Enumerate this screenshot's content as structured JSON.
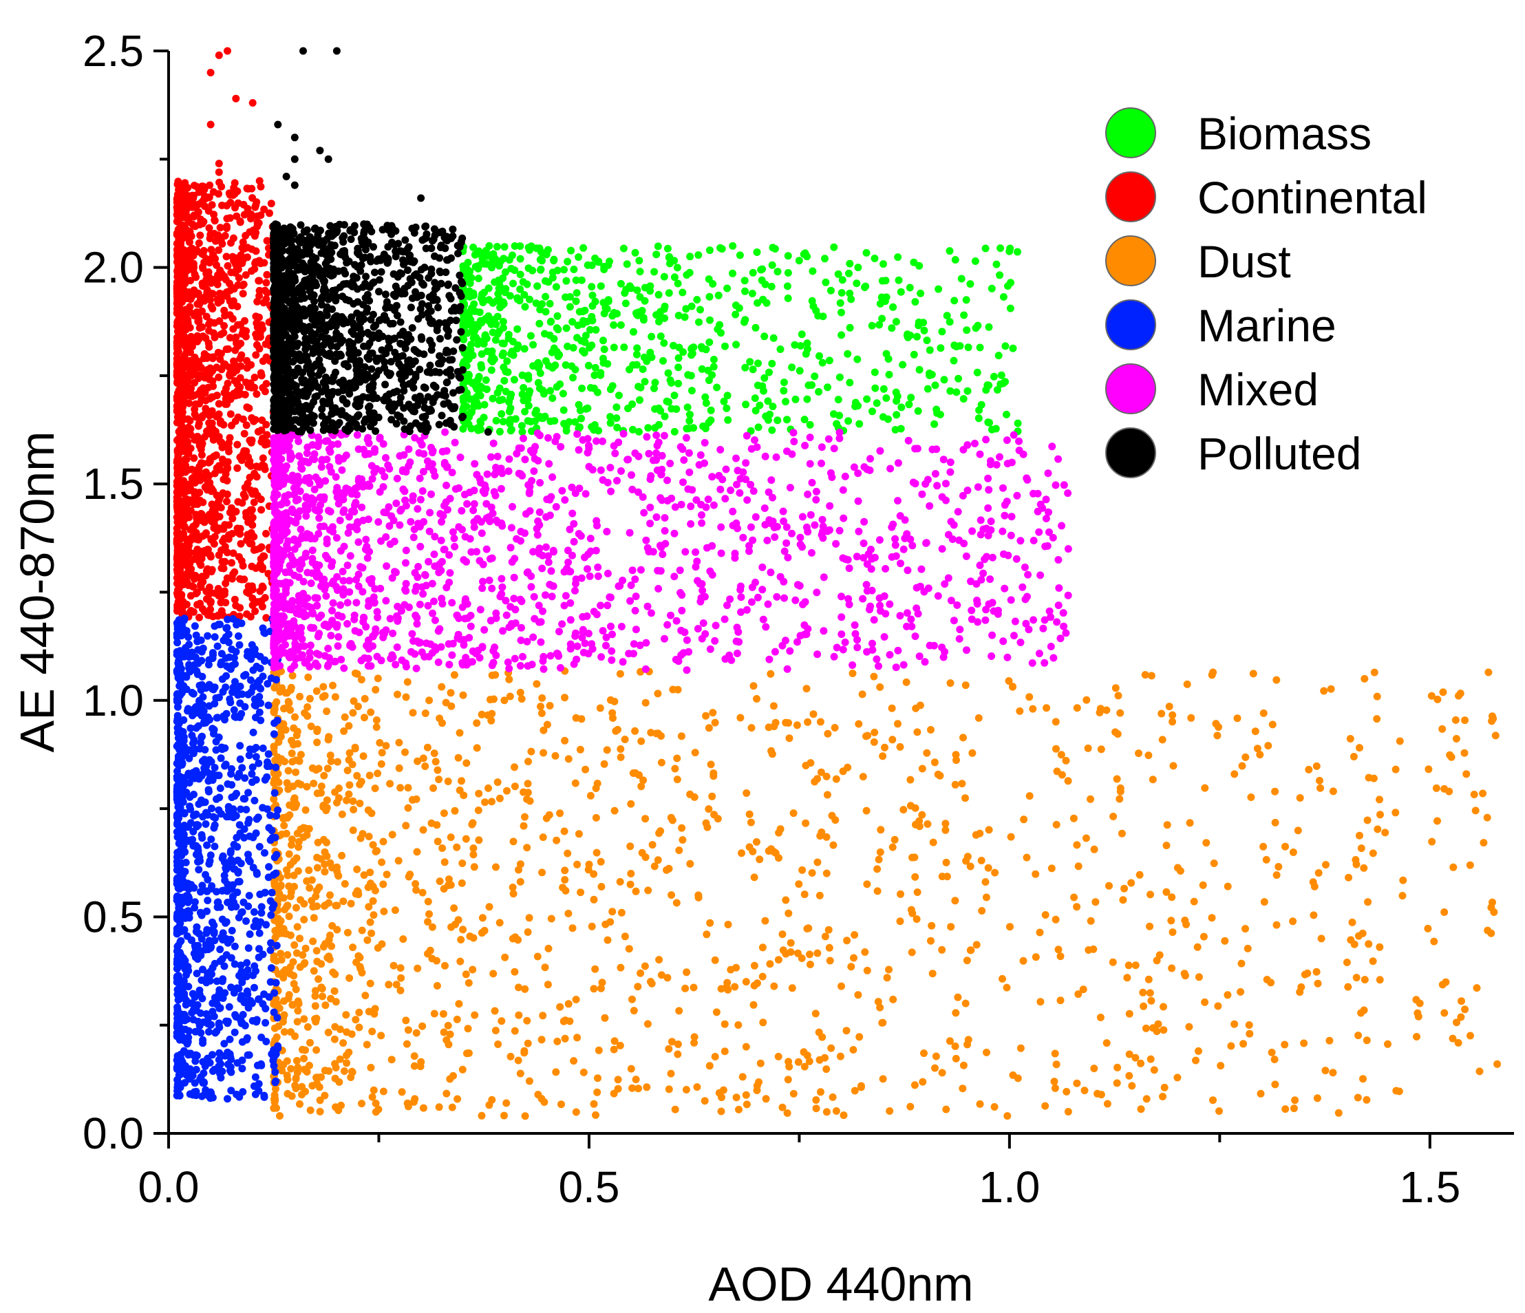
{
  "chart_data": {
    "type": "scatter",
    "title": "",
    "xlabel": "AOD 440nm",
    "ylabel": "AE 440-870nm",
    "xlim": [
      0.0,
      1.6
    ],
    "ylim": [
      0.0,
      2.5
    ],
    "xticks": [
      {
        "value": 0.0,
        "label": "0.0"
      },
      {
        "value": 0.5,
        "label": "0.5"
      },
      {
        "value": 1.0,
        "label": "1.0"
      },
      {
        "value": 1.5,
        "label": "1.5"
      }
    ],
    "yticks": [
      {
        "value": 0.0,
        "label": "0.0"
      },
      {
        "value": 0.5,
        "label": "0.5"
      },
      {
        "value": 1.0,
        "label": "1.0"
      },
      {
        "value": 1.5,
        "label": "1.5"
      },
      {
        "value": 2.0,
        "label": "2.0"
      },
      {
        "value": 2.5,
        "label": "2.5"
      }
    ],
    "legend_position": "top-right",
    "grid": false,
    "series": [
      {
        "name": "Biomass",
        "color": "#00ff00",
        "x_range": [
          0.35,
          1.01
        ],
        "y_range": [
          1.62,
          2.05
        ],
        "n_points": 900,
        "outliers": [
          {
            "x": 0.82,
            "y": 2.0
          },
          {
            "x": 0.96,
            "y": 1.86
          },
          {
            "x": 0.89,
            "y": 1.84
          },
          {
            "x": 1.01,
            "y": 1.64
          },
          {
            "x": 0.77,
            "y": 1.9
          },
          {
            "x": 0.86,
            "y": 1.86
          },
          {
            "x": 0.81,
            "y": 1.94
          },
          {
            "x": 0.58,
            "y": 2.03
          }
        ]
      },
      {
        "name": "Continental",
        "color": "#ff0000",
        "x_range": [
          0.01,
          0.125
        ],
        "y_range": [
          1.19,
          2.2
        ],
        "n_points": 1400,
        "outliers": [
          {
            "x": 0.07,
            "y": 2.5
          },
          {
            "x": 0.06,
            "y": 2.49
          },
          {
            "x": 0.05,
            "y": 2.45
          },
          {
            "x": 0.08,
            "y": 2.39
          },
          {
            "x": 0.1,
            "y": 2.38
          },
          {
            "x": 0.05,
            "y": 2.33
          },
          {
            "x": 0.06,
            "y": 2.24
          },
          {
            "x": 0.03,
            "y": 2.12
          },
          {
            "x": 0.06,
            "y": 2.22
          }
        ]
      },
      {
        "name": "Dust",
        "color": "#ff8c00",
        "x_range": [
          0.125,
          1.58
        ],
        "y_range": [
          0.04,
          1.07
        ],
        "n_points": 1600,
        "outliers": [
          {
            "x": 1.58,
            "y": 0.16
          },
          {
            "x": 1.07,
            "y": 0.05
          },
          {
            "x": 0.92,
            "y": 0.14
          },
          {
            "x": 0.87,
            "y": 0.49
          },
          {
            "x": 0.82,
            "y": 0.32
          },
          {
            "x": 0.8,
            "y": 0.34
          },
          {
            "x": 0.76,
            "y": 0.95
          },
          {
            "x": 0.72,
            "y": 0.94
          },
          {
            "x": 0.68,
            "y": 0.96
          },
          {
            "x": 0.73,
            "y": 0.06
          },
          {
            "x": 0.63,
            "y": 0.55
          },
          {
            "x": 0.65,
            "y": 0.4
          },
          {
            "x": 0.74,
            "y": 0.44
          },
          {
            "x": 0.73,
            "y": 0.46
          },
          {
            "x": 0.72,
            "y": 0.34
          },
          {
            "x": 0.7,
            "y": 0.11
          },
          {
            "x": 0.66,
            "y": 0.1
          }
        ]
      },
      {
        "name": "Marine",
        "color": "#0022ff",
        "x_range": [
          0.01,
          0.13
        ],
        "y_range": [
          0.08,
          1.19
        ],
        "n_points": 1100,
        "outliers": [
          {
            "x": 0.07,
            "y": 0.08
          },
          {
            "x": 0.03,
            "y": 0.18
          },
          {
            "x": 0.11,
            "y": 0.16
          },
          {
            "x": 0.02,
            "y": 0.24
          },
          {
            "x": 0.06,
            "y": 0.17
          },
          {
            "x": 0.1,
            "y": 0.26
          }
        ]
      },
      {
        "name": "Mixed",
        "color": "#ff00ff",
        "x_range": [
          0.125,
          1.07
        ],
        "y_range": [
          1.07,
          1.62
        ],
        "n_points": 1700,
        "outliers": [
          {
            "x": 1.07,
            "y": 1.35
          },
          {
            "x": 0.98,
            "y": 1.33
          },
          {
            "x": 0.95,
            "y": 1.59
          },
          {
            "x": 0.93,
            "y": 1.55
          },
          {
            "x": 0.92,
            "y": 1.47
          },
          {
            "x": 0.9,
            "y": 1.5
          },
          {
            "x": 0.88,
            "y": 1.6
          },
          {
            "x": 0.86,
            "y": 1.4
          },
          {
            "x": 0.84,
            "y": 1.33
          },
          {
            "x": 0.94,
            "y": 1.37
          },
          {
            "x": 0.92,
            "y": 1.35
          },
          {
            "x": 0.8,
            "y": 1.24
          }
        ]
      },
      {
        "name": "Polluted",
        "color": "#000000",
        "x_range": [
          0.125,
          0.35
        ],
        "y_range": [
          1.62,
          2.1
        ],
        "n_points": 1500,
        "outliers": [
          {
            "x": 0.16,
            "y": 2.5
          },
          {
            "x": 0.2,
            "y": 2.5
          },
          {
            "x": 0.13,
            "y": 2.33
          },
          {
            "x": 0.15,
            "y": 2.3
          },
          {
            "x": 0.18,
            "y": 2.27
          },
          {
            "x": 0.19,
            "y": 2.25
          },
          {
            "x": 0.15,
            "y": 2.25
          },
          {
            "x": 0.3,
            "y": 2.16
          },
          {
            "x": 0.15,
            "y": 2.19
          },
          {
            "x": 0.14,
            "y": 2.21
          },
          {
            "x": 0.38,
            "y": 1.62
          }
        ]
      }
    ]
  }
}
